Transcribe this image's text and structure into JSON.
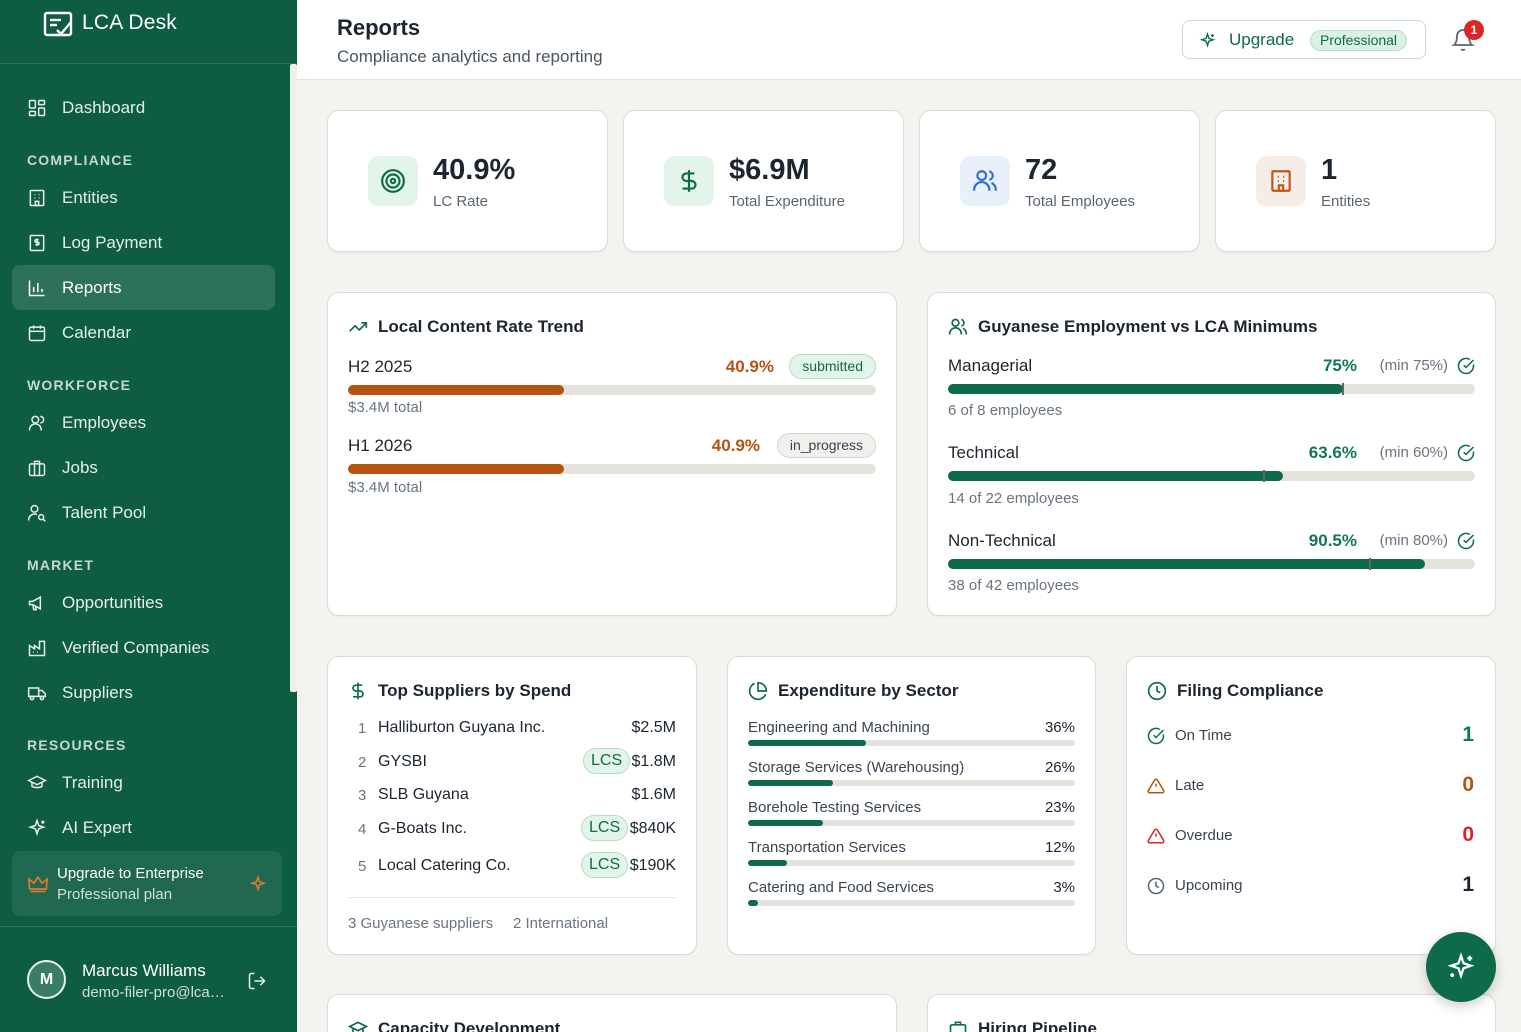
{
  "app": {
    "name": "LCA Desk"
  },
  "colors": {
    "brand": "#0e5c42",
    "accent": "#0e6b4a",
    "orange": "#b5530f",
    "red": "#dc2626"
  },
  "sidebar": {
    "items": [
      {
        "label": "Dashboard",
        "icon": "dashboard-icon"
      },
      {
        "label": "Entities",
        "icon": "building-icon"
      },
      {
        "label": "Log Payment",
        "icon": "receipt-icon"
      },
      {
        "label": "Reports",
        "icon": "bar-chart-icon",
        "active": true
      },
      {
        "label": "Calendar",
        "icon": "calendar-icon"
      },
      {
        "label": "Employees",
        "icon": "users-icon"
      },
      {
        "label": "Jobs",
        "icon": "briefcase-icon"
      },
      {
        "label": "Talent Pool",
        "icon": "user-search-icon"
      },
      {
        "label": "Opportunities",
        "icon": "megaphone-icon"
      },
      {
        "label": "Verified Companies",
        "icon": "factory-icon"
      },
      {
        "label": "Suppliers",
        "icon": "truck-icon"
      },
      {
        "label": "Training",
        "icon": "graduation-cap-icon"
      },
      {
        "label": "AI Expert",
        "icon": "sparkles-icon"
      }
    ],
    "sections": {
      "compliance": "COMPLIANCE",
      "workforce": "WORKFORCE",
      "market": "MARKET",
      "resources": "RESOURCES"
    },
    "upgrade": {
      "title": "Upgrade to Enterprise",
      "subtitle": "Professional plan"
    },
    "user": {
      "initial": "M",
      "name": "Marcus Williams",
      "email": "demo-filer-pro@lca…"
    }
  },
  "header": {
    "title": "Reports",
    "subtitle": "Compliance analytics and reporting",
    "upgrade_label": "Upgrade",
    "plan_badge": "Professional",
    "notification_count": "1"
  },
  "stats": [
    {
      "value": "40.9%",
      "label": "LC Rate",
      "icon": "target-icon"
    },
    {
      "value": "$6.9M",
      "label": "Total Expenditure",
      "icon": "dollar-icon"
    },
    {
      "value": "72",
      "label": "Total Employees",
      "icon": "users-icon"
    },
    {
      "value": "1",
      "label": "Entities",
      "icon": "building-icon"
    }
  ],
  "trend": {
    "title": "Local Content Rate Trend",
    "periods": [
      {
        "label": "H2 2025",
        "pct": "40.9%",
        "value": 40.9,
        "status": "submitted",
        "total": "$3.4M total"
      },
      {
        "label": "H1 2026",
        "pct": "40.9%",
        "value": 40.9,
        "status": "in_progress",
        "total": "$3.4M total"
      }
    ]
  },
  "employment": {
    "title": "Guyanese Employment vs LCA Minimums",
    "rows": [
      {
        "label": "Managerial",
        "pct": "75%",
        "value": 75,
        "min_label": "(min 75%)",
        "min": 75,
        "count": "6 of 8 employees"
      },
      {
        "label": "Technical",
        "pct": "63.6%",
        "value": 63.6,
        "min_label": "(min 60%)",
        "min": 60,
        "count": "14 of 22 employees"
      },
      {
        "label": "Non-Technical",
        "pct": "90.5%",
        "value": 90.5,
        "min_label": "(min 80%)",
        "min": 80,
        "count": "38 of 42 employees"
      }
    ]
  },
  "suppliers": {
    "title": "Top Suppliers by Spend",
    "rows": [
      {
        "rank": "1",
        "name": "Halliburton Guyana Inc.",
        "lcs": "",
        "amount": "$2.5M"
      },
      {
        "rank": "2",
        "name": "GYSBI",
        "lcs": "LCS",
        "amount": "$1.8M"
      },
      {
        "rank": "3",
        "name": "SLB Guyana",
        "lcs": "",
        "amount": "$1.6M"
      },
      {
        "rank": "4",
        "name": "G-Boats Inc.",
        "lcs": "LCS",
        "amount": "$840K"
      },
      {
        "rank": "5",
        "name": "Local Catering Co.",
        "lcs": "LCS",
        "amount": "$190K"
      }
    ],
    "footer": {
      "guyanese": "3 Guyanese suppliers",
      "international": "2 International"
    }
  },
  "sectors": {
    "title": "Expenditure by Sector",
    "rows": [
      {
        "name": "Engineering and Machining",
        "pct": "36%",
        "value": 36
      },
      {
        "name": "Storage Services (Warehousing)",
        "pct": "26%",
        "value": 26
      },
      {
        "name": "Borehole Testing Services",
        "pct": "23%",
        "value": 23
      },
      {
        "name": "Transportation Services",
        "pct": "12%",
        "value": 12
      },
      {
        "name": "Catering and Food Services",
        "pct": "3%",
        "value": 3
      }
    ]
  },
  "filing": {
    "title": "Filing Compliance",
    "rows": [
      {
        "label": "On Time",
        "value": "1",
        "color": "#0e7a52",
        "icon": "check-circle-icon"
      },
      {
        "label": "Late",
        "value": "0",
        "color": "#b5530f",
        "icon": "alert-triangle-icon"
      },
      {
        "label": "Overdue",
        "value": "0",
        "color": "#dc2626",
        "icon": "alert-triangle-icon"
      },
      {
        "label": "Upcoming",
        "value": "1",
        "color": "#1c2530",
        "icon": "clock-icon"
      }
    ]
  },
  "bottom_cards": {
    "capacity": "Capacity Development",
    "hiring": "Hiring Pipeline"
  }
}
